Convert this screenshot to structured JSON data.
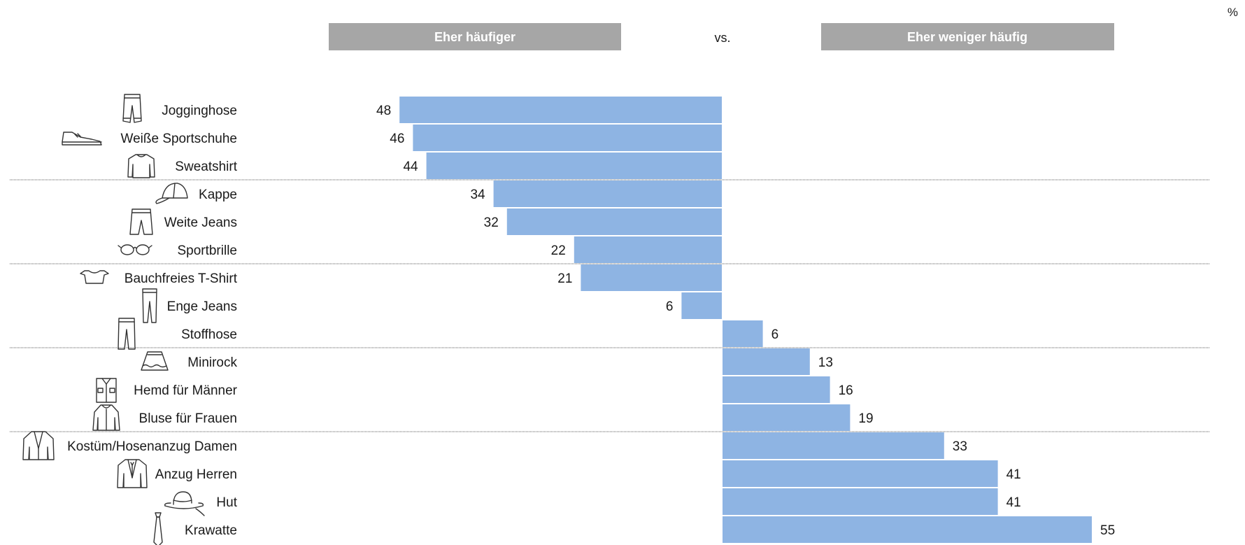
{
  "chart_data": {
    "type": "bar",
    "unit": "%",
    "header_left": "Eher häufiger",
    "header_vs": "vs.",
    "header_right": "Eher weniger häufig",
    "bar_color": "#8eb4e3",
    "header_color": "#a6a6a6",
    "items": [
      {
        "label": "Jogginghose",
        "value": 48,
        "side": "left",
        "icon": "jogging-pants-icon"
      },
      {
        "label": "Weiße Sportschuhe",
        "value": 46,
        "side": "left",
        "icon": "sneaker-icon"
      },
      {
        "label": "Sweatshirt",
        "value": 44,
        "side": "left",
        "icon": "sweatshirt-icon"
      },
      {
        "label": "Kappe",
        "value": 34,
        "side": "left",
        "icon": "cap-icon"
      },
      {
        "label": "Weite Jeans",
        "value": 32,
        "side": "left",
        "icon": "wide-jeans-icon"
      },
      {
        "label": "Sportbrille",
        "value": 22,
        "side": "left",
        "icon": "sport-glasses-icon"
      },
      {
        "label": "Bauchfreies T-Shirt",
        "value": 21,
        "side": "left",
        "icon": "crop-top-icon"
      },
      {
        "label": "Enge Jeans",
        "value": 6,
        "side": "left",
        "icon": "skinny-jeans-icon"
      },
      {
        "label": "Stoffhose",
        "value": 6,
        "side": "right",
        "icon": "trousers-icon"
      },
      {
        "label": "Minirock",
        "value": 13,
        "side": "right",
        "icon": "miniskirt-icon"
      },
      {
        "label": "Hemd für Männer",
        "value": 16,
        "side": "right",
        "icon": "shirt-icon"
      },
      {
        "label": "Bluse für Frauen",
        "value": 19,
        "side": "right",
        "icon": "blouse-icon"
      },
      {
        "label": "Kostüm/Hosenanzug Damen",
        "value": 33,
        "side": "right",
        "icon": "womens-suit-icon"
      },
      {
        "label": "Anzug Herren",
        "value": 41,
        "side": "right",
        "icon": "mens-suit-icon"
      },
      {
        "label": "Hut",
        "value": 41,
        "side": "right",
        "icon": "hat-icon"
      },
      {
        "label": "Krawatte",
        "value": 55,
        "side": "right",
        "icon": "tie-icon"
      }
    ],
    "group_separators_after": [
      "Sweatshirt",
      "Sportbrille",
      "Stoffhose",
      "Bluse für Frauen"
    ]
  }
}
